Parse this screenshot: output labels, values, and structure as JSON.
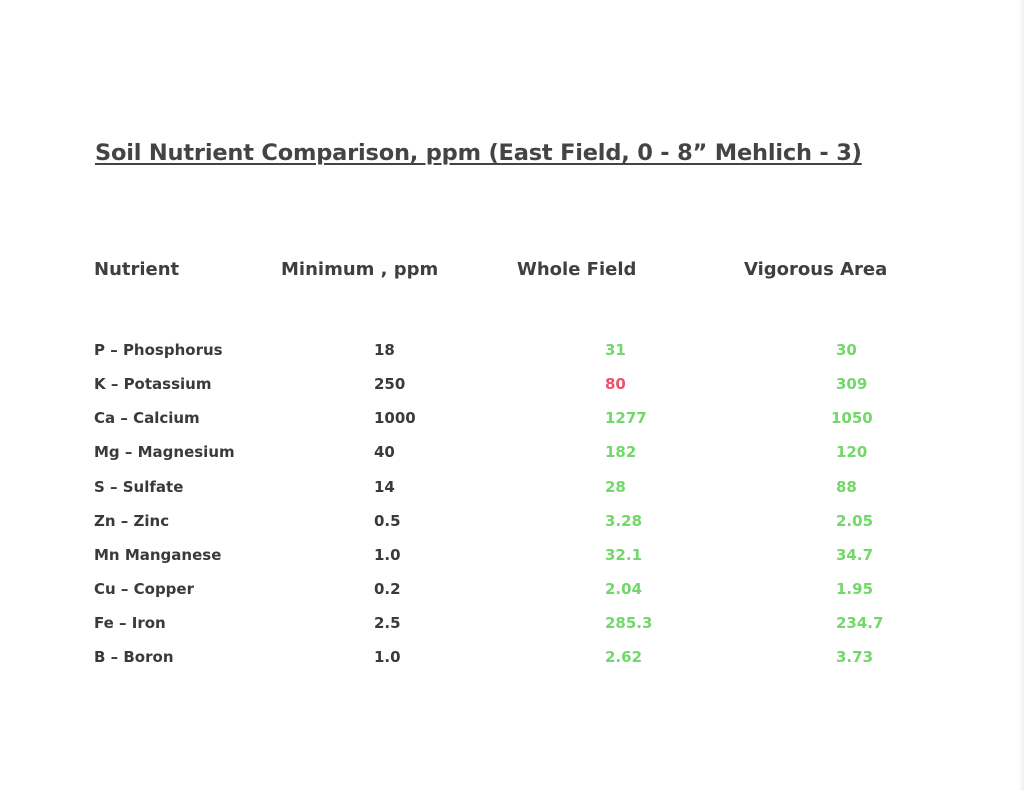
{
  "title": "Soil Nutrient Comparison, ppm  (East Field, 0 - 8”  Mehlich - 3)",
  "headers": {
    "nutrient": "Nutrient",
    "minimum": "Minimum , ppm",
    "whole_field": "Whole Field",
    "vigorous_area": "Vigorous Area"
  },
  "colors": {
    "adequate": "#72d86a",
    "deficient": "#ef4f6e",
    "text": "#3a3a3a"
  },
  "rows": [
    {
      "nutrient": "P – Phosphorus",
      "minimum": "18",
      "whole_field": "31",
      "vigorous_area": "30",
      "whole_status": "ok",
      "vig_status": "ok"
    },
    {
      "nutrient": "K – Potassium",
      "minimum": "250",
      "whole_field": "80",
      "vigorous_area": "309",
      "whole_status": "low",
      "vig_status": "ok"
    },
    {
      "nutrient": "Ca – Calcium",
      "minimum": "1000",
      "whole_field": "1277",
      "vigorous_area": "1050",
      "whole_status": "ok",
      "vig_status": "ok"
    },
    {
      "nutrient": "Mg – Magnesium",
      "minimum": "40",
      "whole_field": "182",
      "vigorous_area": "120",
      "whole_status": "ok",
      "vig_status": "ok"
    },
    {
      "nutrient": "S – Sulfate",
      "minimum": "14",
      "whole_field": "28",
      "vigorous_area": "88",
      "whole_status": "ok",
      "vig_status": "ok"
    },
    {
      "nutrient": "Zn – Zinc",
      "minimum": "0.5",
      "whole_field": "3.28",
      "vigorous_area": "2.05",
      "whole_status": "ok",
      "vig_status": "ok"
    },
    {
      "nutrient": "Mn Manganese",
      "minimum": "1.0",
      "whole_field": "32.1",
      "vigorous_area": "34.7",
      "whole_status": "ok",
      "vig_status": "ok"
    },
    {
      "nutrient": "Cu – Copper",
      "minimum": "0.2",
      "whole_field": "2.04",
      "vigorous_area": "1.95",
      "whole_status": "ok",
      "vig_status": "ok"
    },
    {
      "nutrient": "Fe – Iron",
      "minimum": "2.5",
      "whole_field": "285.3",
      "vigorous_area": "234.7",
      "whole_status": "ok",
      "vig_status": "ok"
    },
    {
      "nutrient": "B – Boron",
      "minimum": "1.0",
      "whole_field": "2.62",
      "vigorous_area": "3.73",
      "whole_status": "ok",
      "vig_status": "ok"
    }
  ]
}
